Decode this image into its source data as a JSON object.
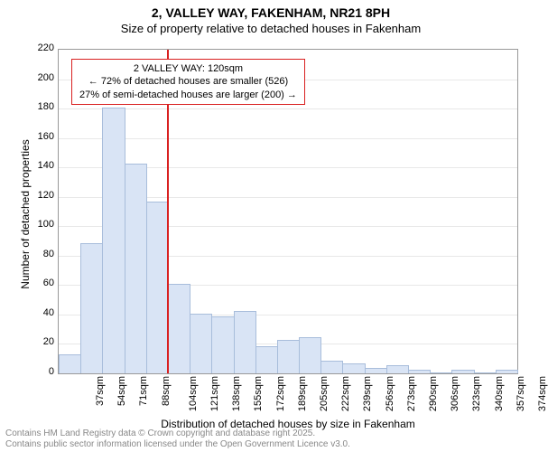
{
  "title_line1": "2, VALLEY WAY, FAKENHAM, NR21 8PH",
  "title_line2": "Size of property relative to detached houses in Fakenham",
  "chart": {
    "type": "histogram",
    "x_categories": [
      "37sqm",
      "54sqm",
      "71sqm",
      "88sqm",
      "104sqm",
      "121sqm",
      "138sqm",
      "155sqm",
      "172sqm",
      "189sqm",
      "205sqm",
      "222sqm",
      "239sqm",
      "256sqm",
      "273sqm",
      "290sqm",
      "306sqm",
      "323sqm",
      "340sqm",
      "357sqm",
      "374sqm"
    ],
    "values": [
      12,
      88,
      180,
      142,
      116,
      60,
      40,
      38,
      42,
      18,
      22,
      24,
      8,
      6,
      3,
      5,
      2,
      0,
      2,
      0,
      2
    ],
    "bar_fill": "#d9e4f5",
    "bar_stroke": "#a8bddb",
    "ylim": [
      0,
      220
    ],
    "ytick_step": 20,
    "y_label": "Number of detached properties",
    "x_label": "Distribution of detached houses by size in Fakenham",
    "background_color": "#ffffff",
    "grid_color": "#e8e8e8",
    "axis_color": "#999999",
    "vline_color": "#d92020",
    "vline_x_index": 5,
    "annotation": {
      "border_color": "#d92020",
      "line1": "2 VALLEY WAY: 120sqm",
      "line2": "← 72% of detached houses are smaller (526)",
      "line3": "27% of semi-detached houses are larger (200) →"
    },
    "title_fontsize": 14,
    "subtitle_fontsize": 13,
    "tick_fontsize": 11,
    "label_fontsize": 12,
    "annotation_fontsize": 11
  },
  "footer": {
    "line1": "Contains HM Land Registry data © Crown copyright and database right 2025.",
    "line2": "Contains public sector information licensed under the Open Government Licence v3.0.",
    "fontsize": 10
  }
}
